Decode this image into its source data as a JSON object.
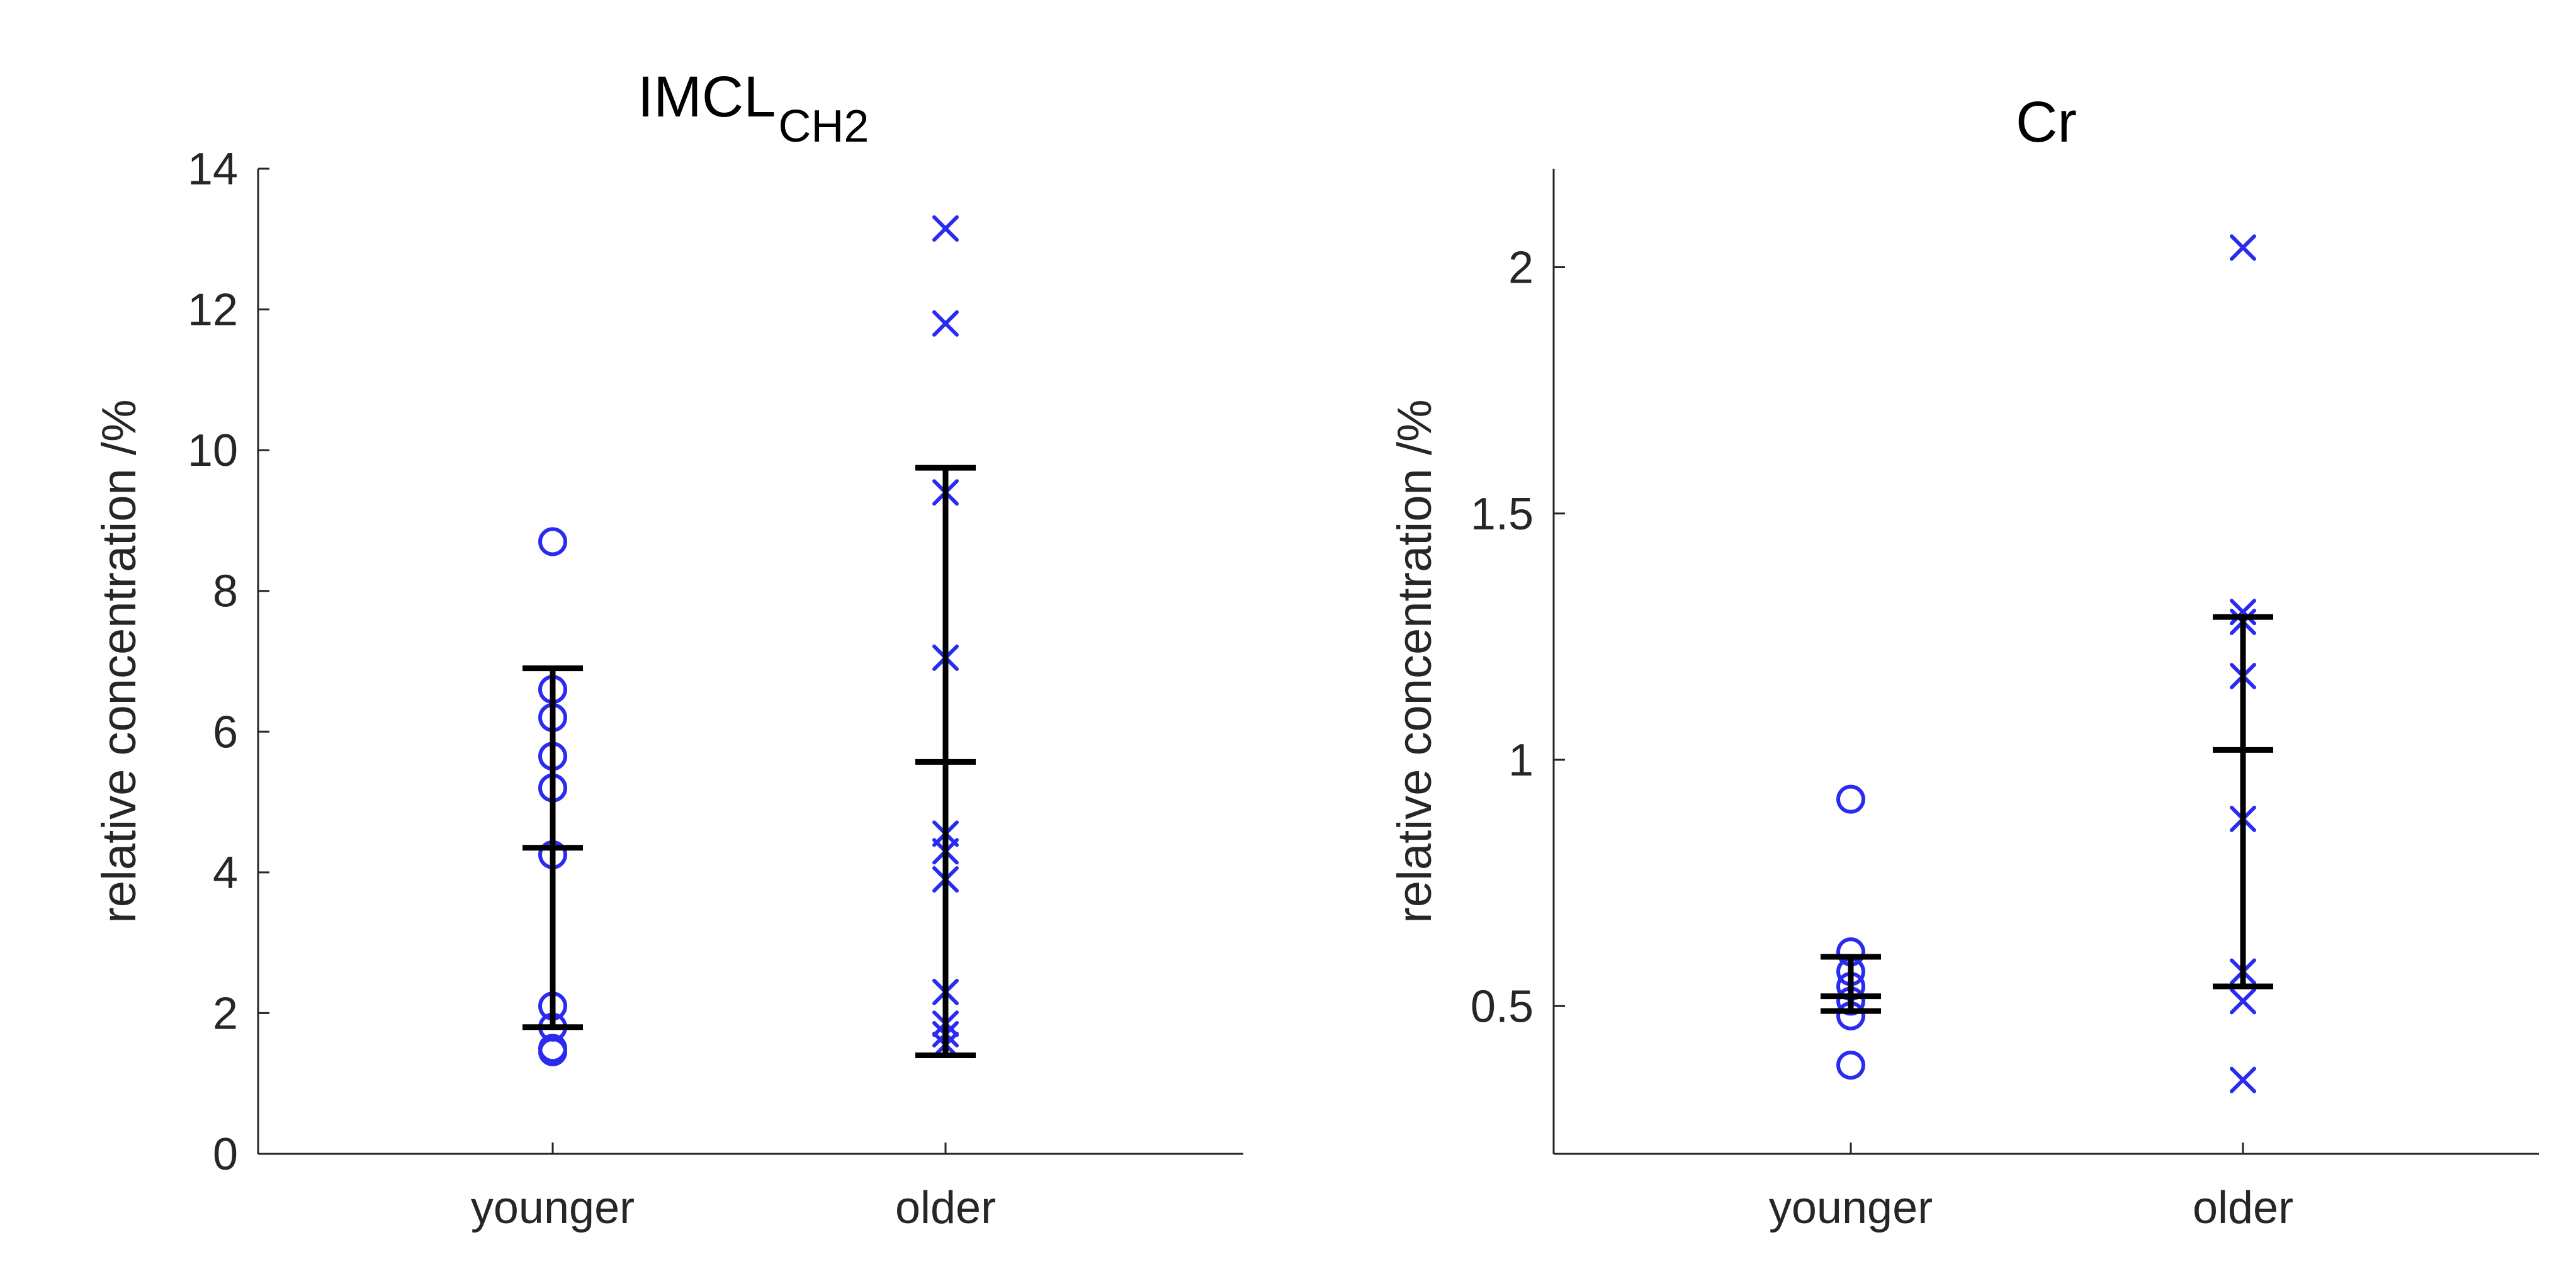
{
  "chart_data": [
    {
      "type": "scatter",
      "title": "IMCL",
      "title_subscript": "CH2",
      "xlabel": "",
      "ylabel": "relative concentration /%",
      "categories": [
        "younger",
        "older"
      ],
      "ylim": [
        0,
        14
      ],
      "yticks": [
        0,
        2,
        4,
        6,
        8,
        10,
        12,
        14
      ],
      "ytick_labels": [
        "0",
        "2",
        "4",
        "6",
        "8",
        "10",
        "12",
        "14"
      ],
      "grid": false,
      "series": [
        {
          "category": "younger",
          "marker": "o",
          "color": "#2b2bf0",
          "values": [
            8.7,
            6.6,
            6.2,
            5.65,
            5.2,
            4.25,
            2.1,
            1.8,
            1.5,
            1.45
          ],
          "errorbar": {
            "mean": 4.35,
            "lower": 1.8,
            "upper": 6.9
          }
        },
        {
          "category": "older",
          "marker": "x",
          "color": "#2b2bf0",
          "values": [
            13.15,
            11.8,
            9.4,
            7.05,
            4.55,
            4.3,
            3.9,
            2.3,
            1.85,
            1.7,
            1.55
          ],
          "errorbar": {
            "mean": 5.57,
            "lower": 1.4,
            "upper": 9.75
          }
        }
      ]
    },
    {
      "type": "scatter",
      "title": "Cr",
      "xlabel": "",
      "ylabel": "relative concentration /%",
      "categories": [
        "younger",
        "older"
      ],
      "ylim": [
        0.2,
        2.2
      ],
      "yticks": [
        0.5,
        1,
        1.5,
        2
      ],
      "ytick_labels": [
        "0.5",
        "1",
        "1.5",
        "2"
      ],
      "grid": false,
      "series": [
        {
          "category": "younger",
          "marker": "o",
          "color": "#2b2bf0",
          "values": [
            0.92,
            0.61,
            0.57,
            0.54,
            0.51,
            0.48,
            0.38
          ],
          "errorbar": {
            "mean": 0.52,
            "lower": 0.49,
            "upper": 0.6
          }
        },
        {
          "category": "older",
          "marker": "x",
          "color": "#2b2bf0",
          "values": [
            2.04,
            1.3,
            1.28,
            1.17,
            0.88,
            0.57,
            0.51,
            0.35
          ],
          "errorbar": {
            "mean": 1.02,
            "lower": 0.54,
            "upper": 1.29
          }
        }
      ]
    }
  ]
}
